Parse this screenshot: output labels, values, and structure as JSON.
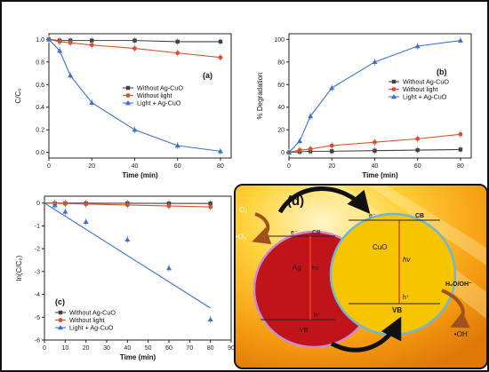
{
  "chart_data": [
    {
      "type": "line",
      "panel_label": "(a)",
      "xlabel": "Time (min)",
      "ylabel": "C/C₀",
      "xlim": [
        0,
        85
      ],
      "ylim": [
        -0.05,
        1.05
      ],
      "x_ticks": [
        "0",
        "20",
        "40",
        "60",
        "80"
      ],
      "y_ticks": [
        "0.0",
        "0.2",
        "0.4",
        "0.6",
        "0.8",
        "1.0"
      ],
      "x": [
        0,
        5,
        10,
        20,
        40,
        60,
        80
      ],
      "legend_position": "right-middle",
      "grid": false,
      "series": [
        {
          "name": "Without Ag-CuO",
          "marker": "square",
          "color": "#404040",
          "values": [
            1.0,
            0.99,
            0.99,
            0.99,
            0.99,
            0.98,
            0.98
          ]
        },
        {
          "name": "Without light",
          "marker": "circle",
          "color": "#d9512c",
          "values": [
            1.0,
            0.98,
            0.97,
            0.95,
            0.92,
            0.88,
            0.84
          ]
        },
        {
          "name": "Light + Ag-CuO",
          "marker": "triangle",
          "color": "#3b6fd4",
          "values": [
            1.0,
            0.9,
            0.68,
            0.44,
            0.2,
            0.06,
            0.01
          ]
        }
      ]
    },
    {
      "type": "line",
      "panel_label": "(b)",
      "xlabel": "Time (min)",
      "ylabel": "% Degradation",
      "xlim": [
        0,
        85
      ],
      "ylim": [
        -5,
        105
      ],
      "x_ticks": [
        "0",
        "20",
        "40",
        "60",
        "80"
      ],
      "y_ticks": [
        "0",
        "20",
        "40",
        "60",
        "80",
        "100"
      ],
      "x": [
        0,
        5,
        10,
        20,
        40,
        60,
        80
      ],
      "legend_position": "right-middle",
      "grid": false,
      "series": [
        {
          "name": "Without Ag-CuO",
          "marker": "square",
          "color": "#404040",
          "values": [
            0,
            0.5,
            1,
            1,
            1.5,
            2,
            2.5
          ]
        },
        {
          "name": "Without light",
          "marker": "circle",
          "color": "#d9512c",
          "values": [
            0,
            2,
            3,
            6,
            9,
            12,
            16
          ]
        },
        {
          "name": "Light + Ag-CuO",
          "marker": "triangle",
          "color": "#3b6fd4",
          "values": [
            0,
            10,
            32,
            57,
            80,
            94,
            99
          ]
        }
      ]
    },
    {
      "type": "scatter",
      "panel_label": "(c)",
      "xlabel": "Time (min)",
      "ylabel": "ln(C/C₀)",
      "xlim": [
        0,
        90
      ],
      "ylim": [
        -6,
        0.3
      ],
      "x_ticks": [
        "0",
        "10",
        "20",
        "30",
        "40",
        "50",
        "60",
        "70",
        "80",
        "90"
      ],
      "y_ticks": [
        "0",
        "-1",
        "-2",
        "-3",
        "-4",
        "-5",
        "-6"
      ],
      "legend_position": "bottom-left",
      "grid": false,
      "series": [
        {
          "name": "Without Ag-CuO",
          "marker": "square",
          "color": "#404040",
          "x": [
            5,
            10,
            20,
            40,
            60,
            80
          ],
          "values": [
            -0.01,
            -0.01,
            -0.01,
            -0.01,
            -0.02,
            -0.02
          ],
          "fit": [
            [
              0,
              0
            ],
            [
              80,
              -0.02
            ]
          ]
        },
        {
          "name": "Without light",
          "marker": "circle",
          "color": "#d9512c",
          "x": [
            5,
            10,
            20,
            40,
            60,
            80
          ],
          "values": [
            -0.02,
            -0.03,
            -0.05,
            -0.08,
            -0.13,
            -0.17
          ],
          "fit": [
            [
              0,
              0
            ],
            [
              80,
              -0.17
            ]
          ]
        },
        {
          "name": "Light + Ag-CuO",
          "marker": "triangle",
          "color": "#3b6fd4",
          "x": [
            5,
            10,
            20,
            40,
            60,
            80
          ],
          "values": [
            -0.1,
            -0.38,
            -0.82,
            -1.6,
            -2.85,
            -5.1
          ],
          "fit": [
            [
              0,
              0
            ],
            [
              80,
              -4.6
            ]
          ]
        }
      ]
    }
  ],
  "diagram": {
    "panel_label": "(d)",
    "o2": "O₂",
    "o2_radical": "•O₂⁻",
    "ag": {
      "label": "Ag",
      "cb": "CB",
      "vb": "VB",
      "electron": "e⁻",
      "hole": "h⁺",
      "hv": "hv"
    },
    "cuo": {
      "label": "CuO",
      "cb": "CB",
      "vb": "VB",
      "electron": "e⁻",
      "hole": "h⁺",
      "hv": "hv"
    },
    "h2o": "H₂O/OH⁻",
    "oh": "•OH"
  }
}
